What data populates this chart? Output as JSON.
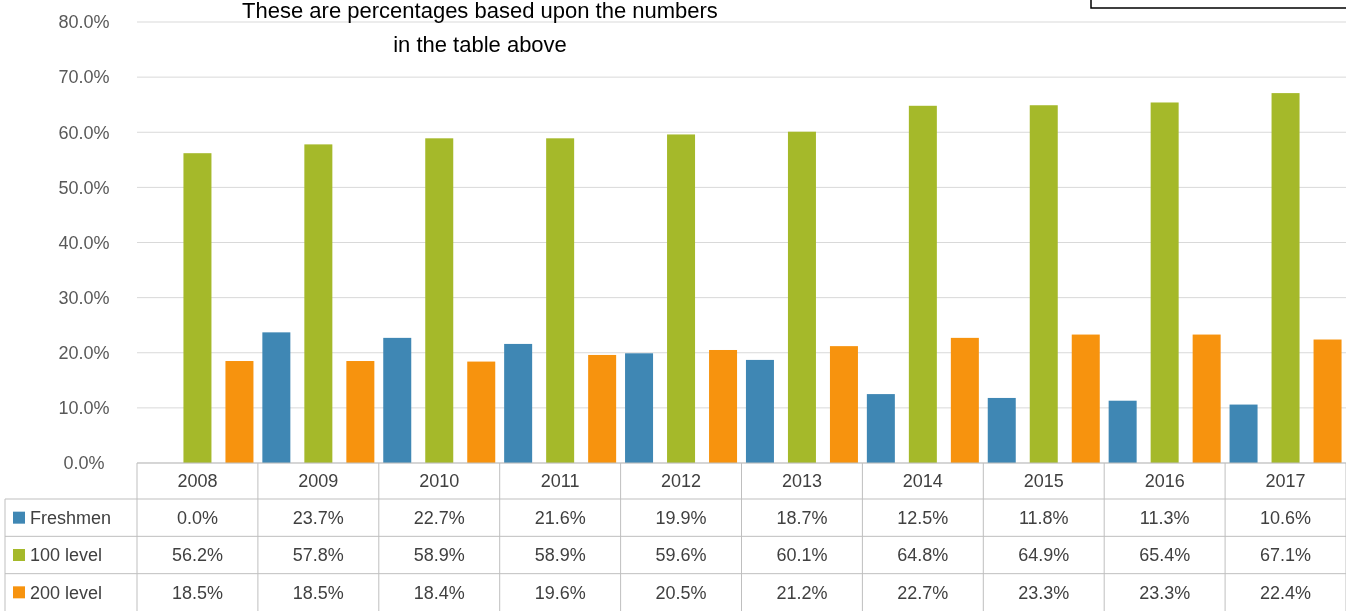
{
  "chart_data": {
    "type": "bar",
    "annotations": [
      "These are percentages based upon the numbers in the table above"
    ],
    "categories": [
      "2008",
      "2009",
      "2010",
      "2011",
      "2012",
      "2013",
      "2014",
      "2015",
      "2016",
      "2017"
    ],
    "series": [
      {
        "name": "Freshmen",
        "color": "#3f87b4",
        "values": [
          0.0,
          23.7,
          22.7,
          21.6,
          19.9,
          18.7,
          12.5,
          11.8,
          11.3,
          10.6
        ],
        "value_labels": [
          "0.0%",
          "23.7%",
          "22.7%",
          "21.6%",
          "19.9%",
          "18.7%",
          "12.5%",
          "11.8%",
          "11.3%",
          "10.6%"
        ]
      },
      {
        "name": "100 level",
        "color": "#a5b92a",
        "values": [
          56.2,
          57.8,
          58.9,
          58.9,
          59.6,
          60.1,
          64.8,
          64.9,
          65.4,
          67.1
        ],
        "value_labels": [
          "56.2%",
          "57.8%",
          "58.9%",
          "58.9%",
          "59.6%",
          "60.1%",
          "64.8%",
          "64.9%",
          "65.4%",
          "67.1%"
        ]
      },
      {
        "name": "200 level",
        "color": "#f7930e",
        "values": [
          18.5,
          18.5,
          18.4,
          19.6,
          20.5,
          21.2,
          22.7,
          23.3,
          23.3,
          22.4
        ],
        "value_labels": [
          "18.5%",
          "18.5%",
          "18.4%",
          "19.6%",
          "20.5%",
          "21.2%",
          "22.7%",
          "23.3%",
          "23.3%",
          "22.4%"
        ]
      }
    ],
    "ylim": [
      0,
      80
    ],
    "yticks": [
      {
        "value": 0,
        "label": "0.0%"
      },
      {
        "value": 10,
        "label": "10.0%"
      },
      {
        "value": 20,
        "label": "20.0%"
      },
      {
        "value": 30,
        "label": "30.0%"
      },
      {
        "value": 40,
        "label": "40.0%"
      },
      {
        "value": 50,
        "label": "50.0%"
      },
      {
        "value": 60,
        "label": "60.0%"
      },
      {
        "value": 70,
        "label": "70.0%"
      },
      {
        "value": 80,
        "label": "80.0%"
      }
    ],
    "grid": "y",
    "legend": "bottom"
  }
}
